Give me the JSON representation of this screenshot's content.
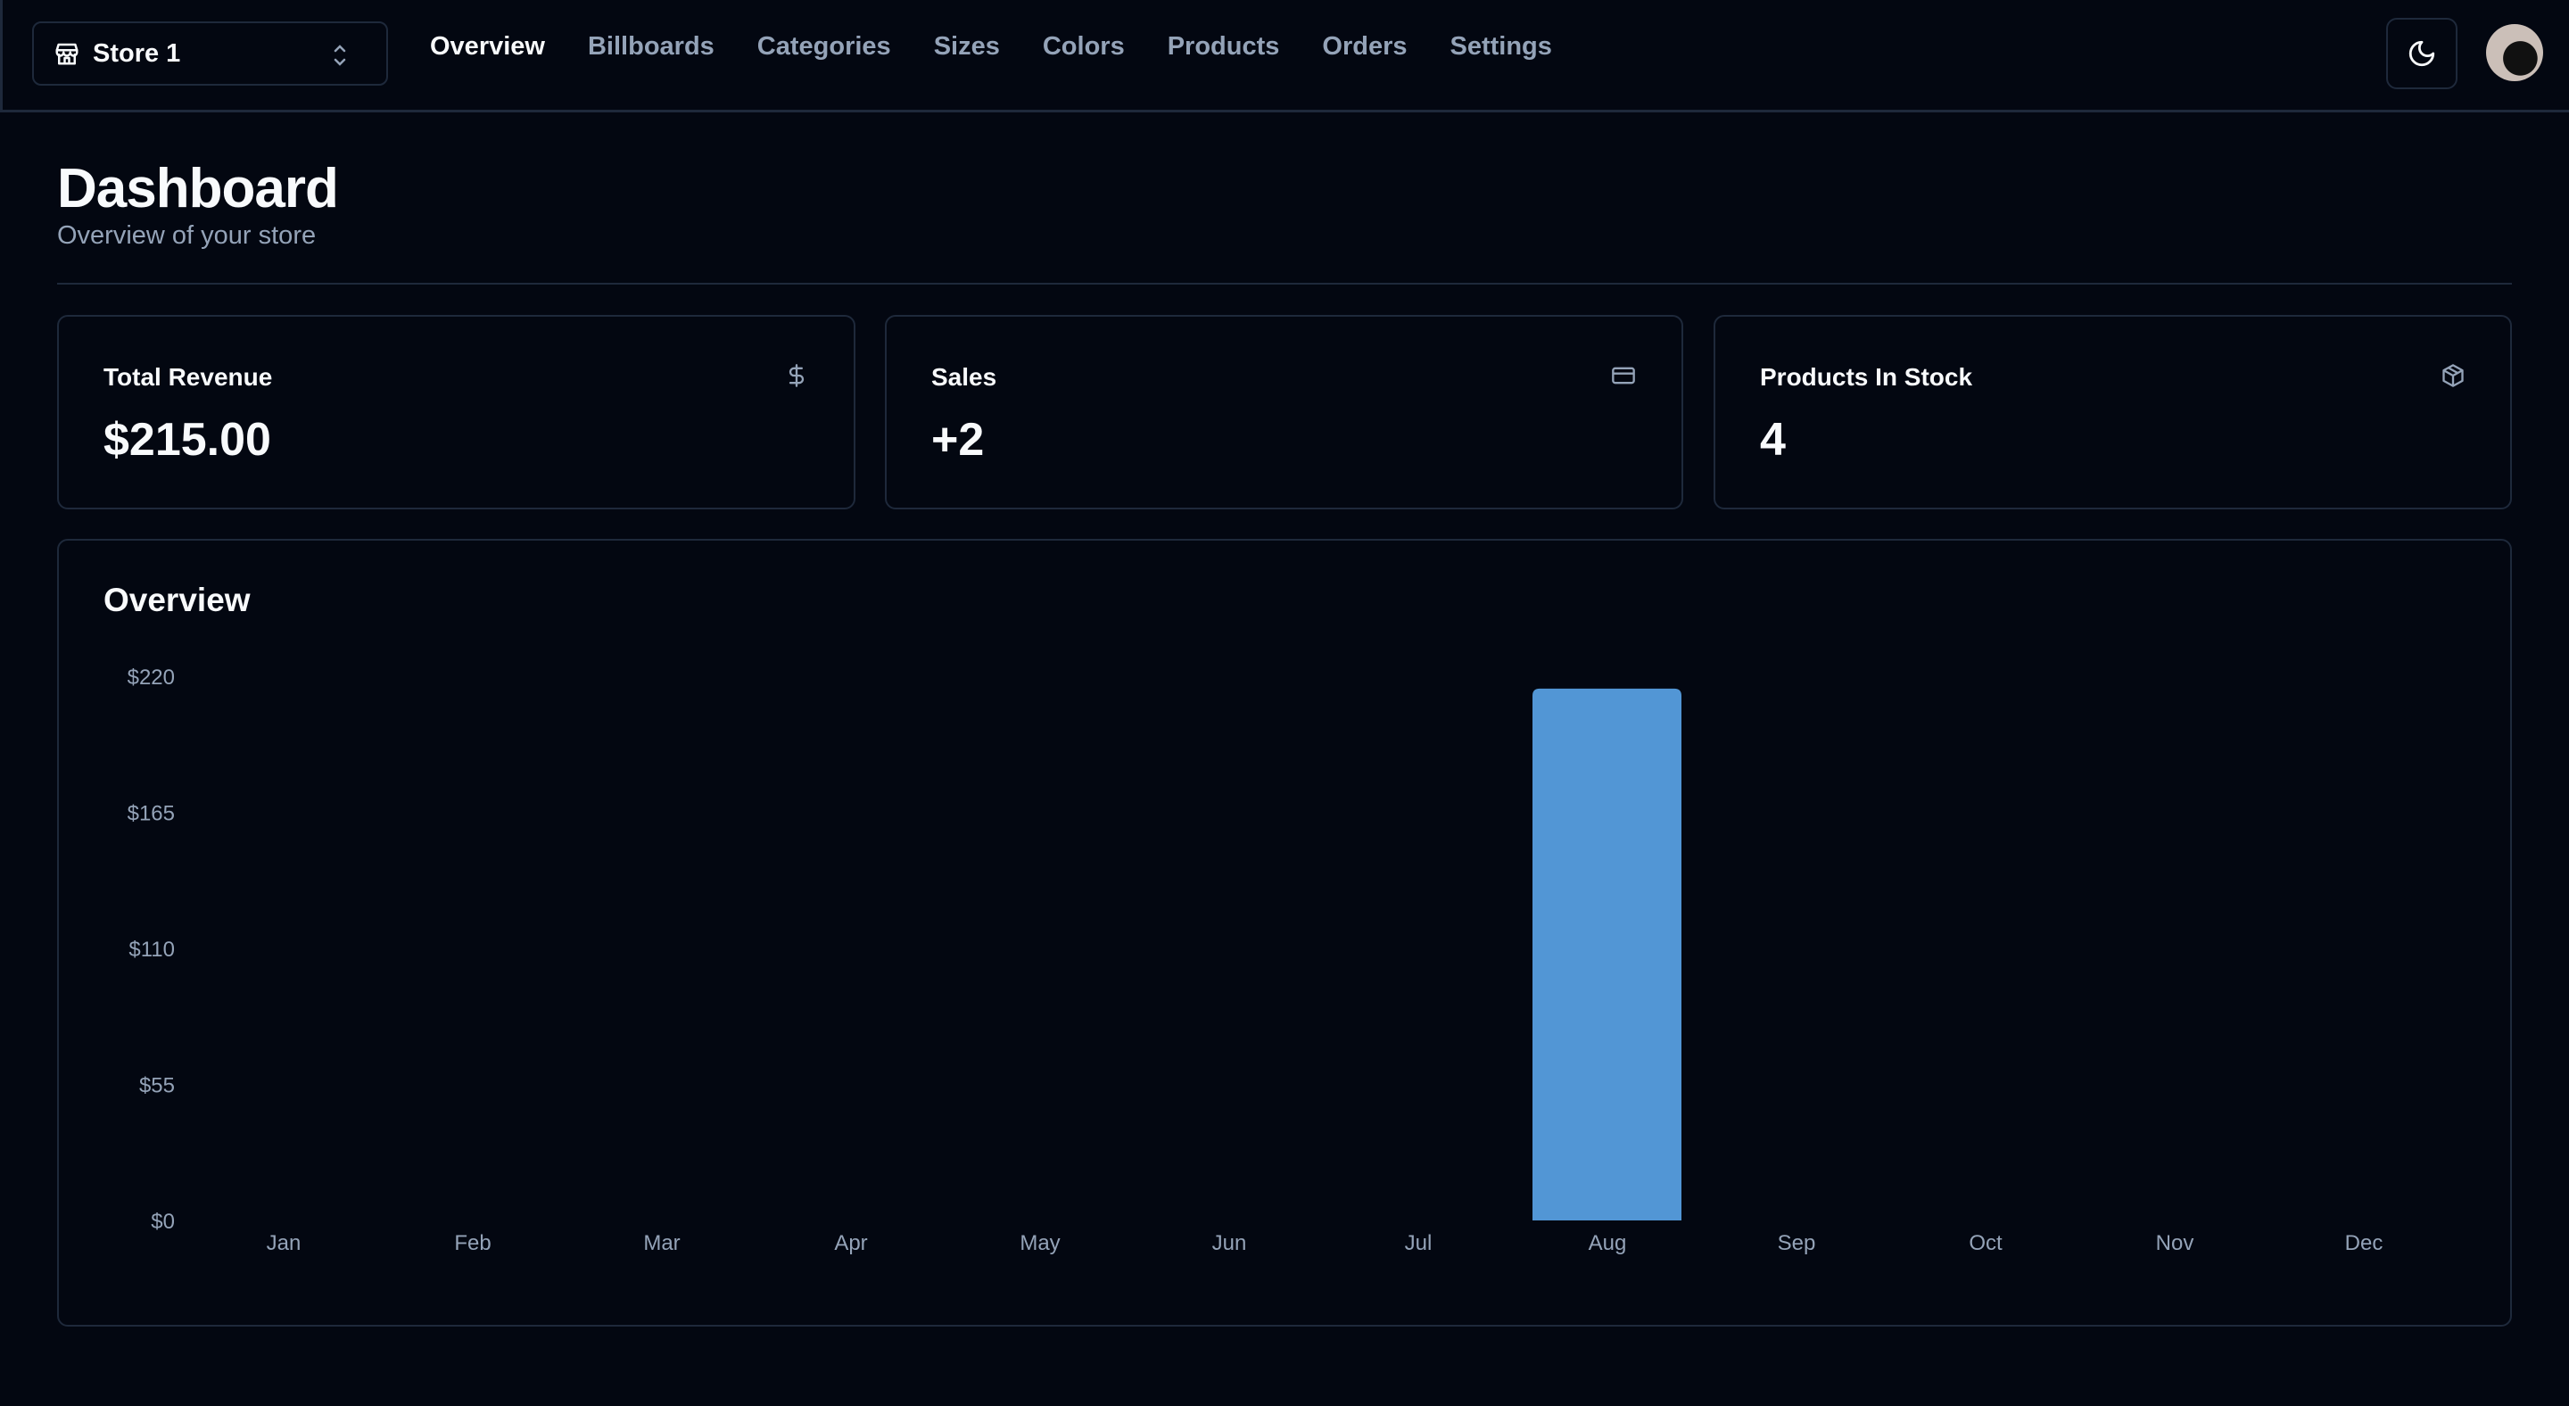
{
  "header": {
    "store_name": "Store 1",
    "nav": [
      "Overview",
      "Billboards",
      "Categories",
      "Sizes",
      "Colors",
      "Products",
      "Orders",
      "Settings"
    ],
    "active_nav": "Overview"
  },
  "page": {
    "title": "Dashboard",
    "subtitle": "Overview of your store"
  },
  "cards": [
    {
      "title": "Total Revenue",
      "value": "$215.00",
      "icon": "dollar-icon"
    },
    {
      "title": "Sales",
      "value": "+2",
      "icon": "credit-card-icon"
    },
    {
      "title": "Products In Stock",
      "value": "4",
      "icon": "package-icon"
    }
  ],
  "overview_title": "Overview",
  "colors": {
    "bar": "#5296d5",
    "muted": "#94a3b8",
    "border": "#1e293b"
  },
  "chart_data": {
    "type": "bar",
    "title": "Overview",
    "categories": [
      "Jan",
      "Feb",
      "Mar",
      "Apr",
      "May",
      "Jun",
      "Jul",
      "Aug",
      "Sep",
      "Oct",
      "Nov",
      "Dec"
    ],
    "values": [
      0,
      0,
      0,
      0,
      0,
      0,
      0,
      215,
      0,
      0,
      0,
      0
    ],
    "yticks": [
      0,
      55,
      110,
      165,
      220
    ],
    "ytick_labels": [
      "$0",
      "$55",
      "$110",
      "$165",
      "$220"
    ],
    "ylim": [
      0,
      220
    ],
    "xlabel": "",
    "ylabel": "",
    "grid": false
  }
}
